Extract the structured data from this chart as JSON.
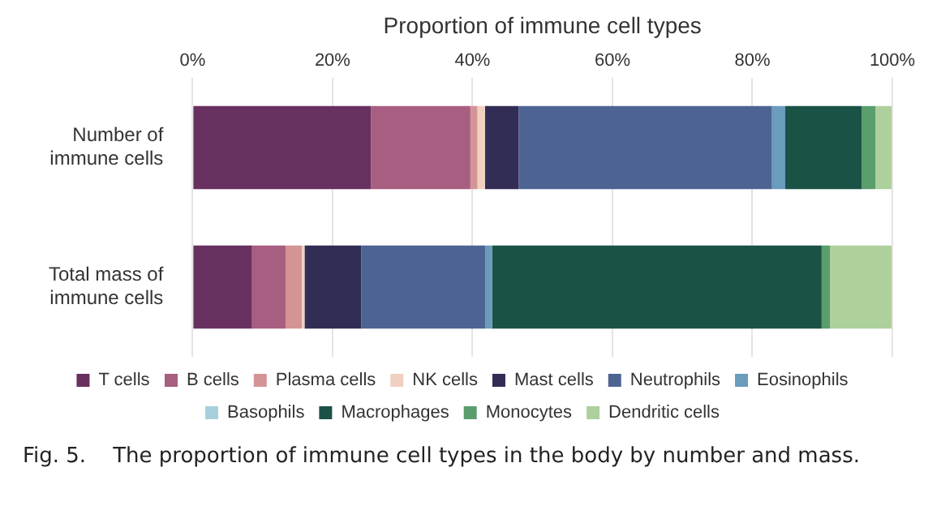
{
  "chart_data": {
    "type": "bar",
    "orientation": "horizontal",
    "stacked": true,
    "xlabel": "Proportion of immune cell types",
    "categories": [
      "Number of immune cells",
      "Total mass of immune cells"
    ],
    "series": [
      {
        "name": "T cells",
        "color": "#68305f",
        "values": [
          25.5,
          8.5
        ]
      },
      {
        "name": "B cells",
        "color": "#a85e80",
        "values": [
          14.2,
          4.8
        ]
      },
      {
        "name": "Plasma cells",
        "color": "#d49496",
        "values": [
          1.0,
          2.3
        ]
      },
      {
        "name": "NK cells",
        "color": "#f0d0c0",
        "values": [
          1.1,
          0.4
        ]
      },
      {
        "name": "Mast cells",
        "color": "#322d55",
        "values": [
          4.8,
          8.1
        ]
      },
      {
        "name": "Neutrophils",
        "color": "#4d6493",
        "values": [
          36.2,
          17.7
        ]
      },
      {
        "name": "Eosinophils",
        "color": "#6a9cbb",
        "values": [
          1.9,
          1.0
        ]
      },
      {
        "name": "Basophils",
        "color": "#a8d0dc",
        "values": [
          null,
          null
        ]
      },
      {
        "name": "Macrophages",
        "color": "#1b5246",
        "values": [
          10.9,
          47.1
        ]
      },
      {
        "name": "Monocytes",
        "color": "#5a9e6c",
        "values": [
          2.0,
          1.2
        ]
      },
      {
        "name": "Dendritic cells",
        "color": "#aed09c",
        "values": [
          2.3,
          8.8
        ]
      }
    ],
    "xlim": [
      0,
      100
    ],
    "xticks": [
      {
        "value": 0,
        "label": "0%"
      },
      {
        "value": 20,
        "label": "20%"
      },
      {
        "value": 40,
        "label": "40%"
      },
      {
        "value": 60,
        "label": "60%"
      },
      {
        "value": 80,
        "label": "80%"
      },
      {
        "value": 100,
        "label": "100%"
      }
    ],
    "grid": "x",
    "legend": "bottom",
    "annotations": [
      "Fig. 5.    The proportion of immune cell types in the body by number and mass."
    ]
  }
}
